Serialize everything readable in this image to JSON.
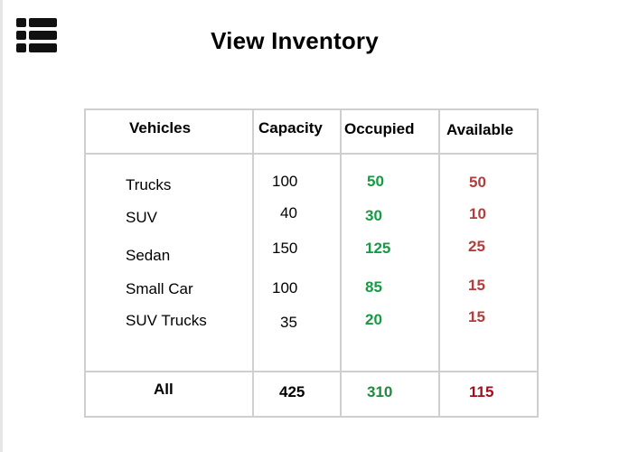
{
  "header": {
    "menu_icon": "hamburger-menu-icon",
    "title": "View Inventory"
  },
  "table": {
    "columns": [
      "Vehicles",
      "Capacity",
      "Occupied",
      "Available"
    ],
    "rows": [
      {
        "vehicle": "Trucks",
        "capacity": "100",
        "occupied": "50",
        "available": "50"
      },
      {
        "vehicle": "SUV",
        "capacity": "40",
        "occupied": "30",
        "available": "10"
      },
      {
        "vehicle": "Sedan",
        "capacity": "150",
        "occupied": "125",
        "available": "25"
      },
      {
        "vehicle": "Small Car",
        "capacity": "100",
        "occupied": "85",
        "available": "15"
      },
      {
        "vehicle": "SUV Trucks",
        "capacity": "35",
        "occupied": "20",
        "available": "15"
      }
    ],
    "total": {
      "label": "All",
      "capacity": "425",
      "occupied": "310",
      "available": "115"
    }
  },
  "colors": {
    "occupied": "#169a44",
    "available": "#b33c3c",
    "available_total": "#a40e1c",
    "border": "#cfcfcf"
  }
}
